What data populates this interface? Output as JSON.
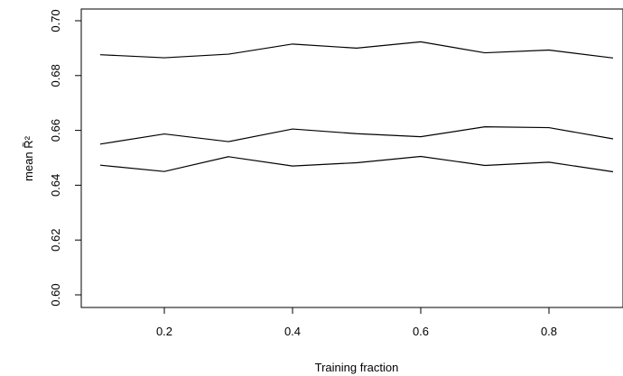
{
  "chart_data": {
    "type": "line",
    "xlabel": "Training fraction",
    "ylabel": "mean R̃²",
    "xlim": [
      0.1,
      0.9
    ],
    "ylim": [
      0.6,
      0.7
    ],
    "grid": false,
    "legend": "none",
    "x_ticks": [
      {
        "value": 0.2,
        "label": "0.2"
      },
      {
        "value": 0.4,
        "label": "0.4"
      },
      {
        "value": 0.6,
        "label": "0.6"
      },
      {
        "value": 0.8,
        "label": "0.8"
      }
    ],
    "y_ticks": [
      {
        "value": 0.6,
        "label": "0.60"
      },
      {
        "value": 0.62,
        "label": "0.62"
      },
      {
        "value": 0.64,
        "label": "0.64"
      },
      {
        "value": 0.66,
        "label": "0.66"
      },
      {
        "value": 0.68,
        "label": "0.68"
      },
      {
        "value": 0.7,
        "label": "0.70"
      }
    ],
    "x": [
      0.1,
      0.2,
      0.3,
      0.4,
      0.5,
      0.6,
      0.7,
      0.8,
      0.9
    ],
    "series": [
      {
        "values": [
          0.6876,
          0.6865,
          0.6878,
          0.6915,
          0.69,
          0.6923,
          0.6883,
          0.6893,
          0.6864
        ],
        "color": "#000000"
      },
      {
        "values": [
          0.655,
          0.6587,
          0.6559,
          0.6605,
          0.6588,
          0.6577,
          0.6613,
          0.661,
          0.6569
        ],
        "color": "#000000"
      },
      {
        "values": [
          0.6473,
          0.645,
          0.6504,
          0.647,
          0.6482,
          0.6505,
          0.6472,
          0.6484,
          0.6449
        ],
        "color": "#000000"
      }
    ]
  }
}
